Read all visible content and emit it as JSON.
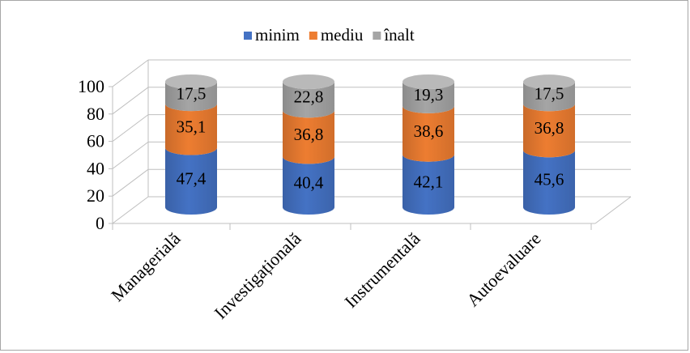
{
  "chart_data": {
    "type": "bar",
    "stacked": true,
    "style": "3d-cylinder",
    "categories": [
      "Managerială",
      "Investigațională",
      "Instrumentală",
      "Autoevaluare"
    ],
    "series": [
      {
        "name": "minim",
        "color": "#4472C4",
        "values": [
          47.4,
          40.4,
          42.1,
          45.6
        ],
        "labels": [
          "47,4",
          "40,4",
          "42,1",
          "45,6"
        ]
      },
      {
        "name": "mediu",
        "color": "#ED7D31",
        "values": [
          35.1,
          36.8,
          38.6,
          36.8
        ],
        "labels": [
          "35,1",
          "36,8",
          "38,6",
          "36,8"
        ]
      },
      {
        "name": "înalt",
        "color": "#A5A5A5",
        "values": [
          17.5,
          22.8,
          19.3,
          17.5
        ],
        "labels": [
          "17,5",
          "22,8",
          "19,3",
          "17,5"
        ]
      }
    ],
    "ylim": [
      0,
      100
    ],
    "yticks": [
      "0",
      "20",
      "40",
      "60",
      "80",
      "100"
    ],
    "grid": true,
    "legend": "top-center"
  }
}
